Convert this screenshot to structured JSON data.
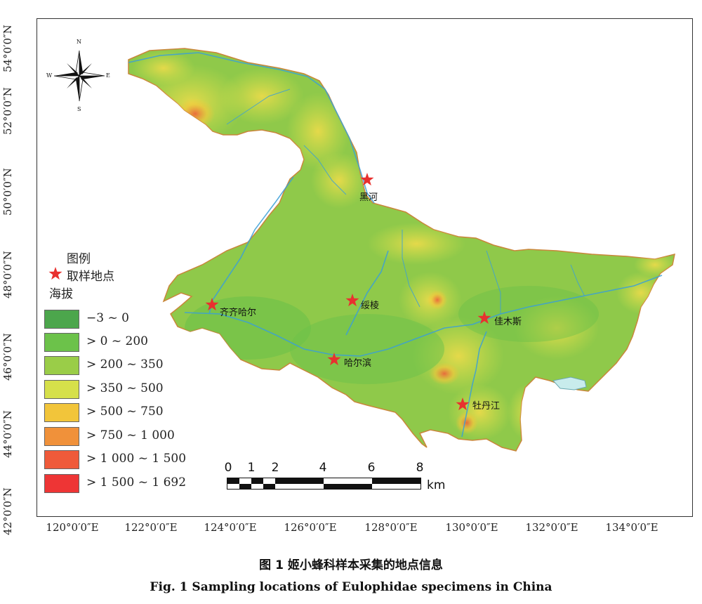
{
  "latitude_labels": [
    "54°0′0″N",
    "52°0′0″N",
    "50°0′0″N",
    "48°0′0″N",
    "46°0′0″N",
    "44°0′0″N",
    "42°0′0″N"
  ],
  "longitude_labels": [
    "120°0′0″E",
    "122°0′0″E",
    "124°0′0″E",
    "126°0′0″E",
    "128°0′0″E",
    "130°0′0″E",
    "132°0′0″E",
    "134°0′0″E"
  ],
  "compass": {
    "n": "N",
    "s": "S",
    "e": "E",
    "w": "W"
  },
  "cities": [
    {
      "id": "heihe",
      "name": "黑河"
    },
    {
      "id": "qiqihar",
      "name": "齐齐哈尔"
    },
    {
      "id": "suihua",
      "name": "绥棱"
    },
    {
      "id": "jiamusi",
      "name": "佳木斯"
    },
    {
      "id": "harbin",
      "name": "哈尔滨"
    },
    {
      "id": "mudanjiang",
      "name": "牡丹江"
    }
  ],
  "legend": {
    "title": "图例",
    "sample_label": "取样地点",
    "elevation_label": "海拔",
    "items": [
      {
        "label": "−3 ~ 0",
        "color": "#4ca64c"
      },
      {
        "label": "> 0 ~ 200",
        "color": "#6cc24a"
      },
      {
        "label": "> 200 ~ 350",
        "color": "#9acd48"
      },
      {
        "label": "> 350 ~ 500",
        "color": "#d6e04a"
      },
      {
        "label": "> 500 ~ 750",
        "color": "#f2c53a"
      },
      {
        "label": "> 750 ~ 1 000",
        "color": "#f0913a"
      },
      {
        "label": "> 1 000 ~ 1 500",
        "color": "#ef5a3a"
      },
      {
        "label": "> 1 500 ~ 1 692",
        "color": "#ee3535"
      }
    ]
  },
  "scale_bar": {
    "numbers": [
      "0",
      "1",
      "2",
      "4",
      "6",
      "8"
    ],
    "unit": "km"
  },
  "caption": {
    "cn": "图 1    姬小蜂科样本采集的地点信息",
    "en": "Fig. 1    Sampling locations of Eulophidae specimens in China"
  },
  "colors": {
    "marker": "#e8312f",
    "river": "#3a9fd8",
    "outline": "#c9863a"
  }
}
